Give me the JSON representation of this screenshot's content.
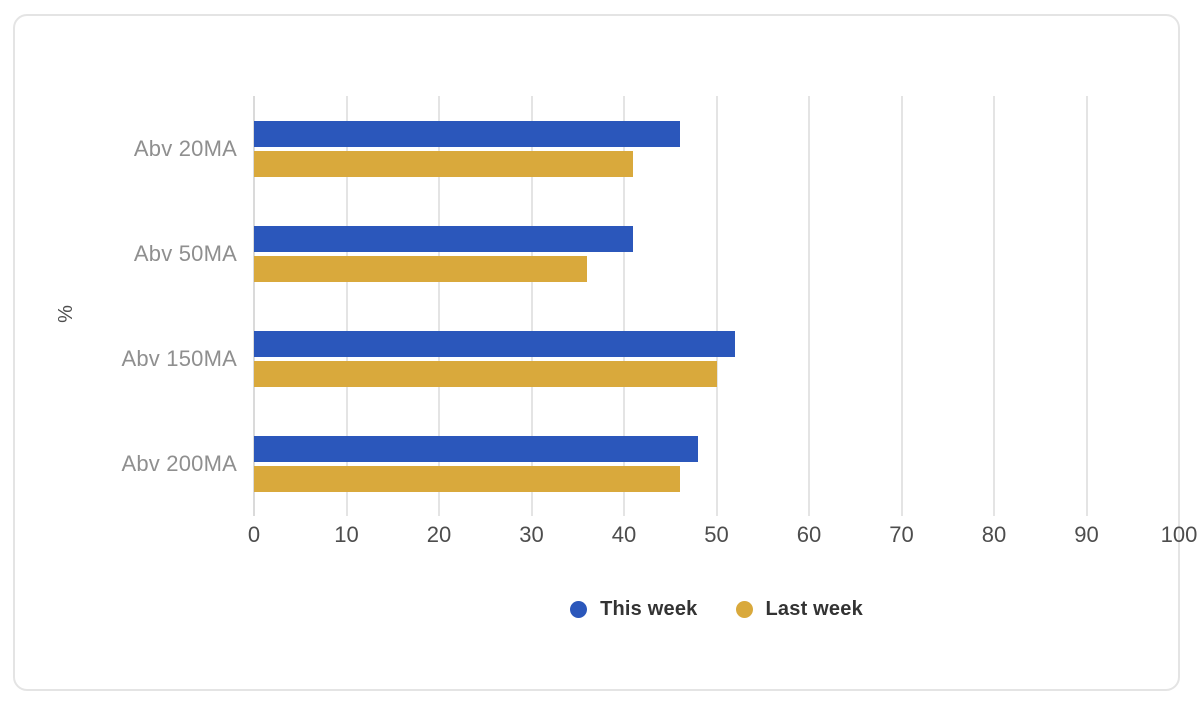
{
  "chart_data": {
    "type": "bar",
    "orientation": "horizontal",
    "title": "",
    "xlabel": "",
    "ylabel": "%",
    "categories": [
      "Abv 20MA",
      "Abv 50MA",
      "Abv 150MA",
      "Abv 200MA"
    ],
    "series": [
      {
        "name": "This week",
        "color": "#2B57BB",
        "values": [
          46,
          41,
          52,
          48
        ]
      },
      {
        "name": "Last week",
        "color": "#D9A93C",
        "values": [
          41,
          36,
          50,
          46
        ]
      }
    ],
    "xlim": [
      0,
      100
    ],
    "x_ticks": [
      0,
      10,
      20,
      30,
      40,
      50,
      60,
      70,
      80,
      90,
      100
    ],
    "grid": true,
    "legend_position": "bottom"
  },
  "colors": {
    "gridline": "#e4e4e4",
    "axis_text": "#4d4d4d",
    "category_text": "#8f8f8f",
    "legend_text": "#333333",
    "card_border": "#e4e4e4",
    "background": "#ffffff"
  }
}
